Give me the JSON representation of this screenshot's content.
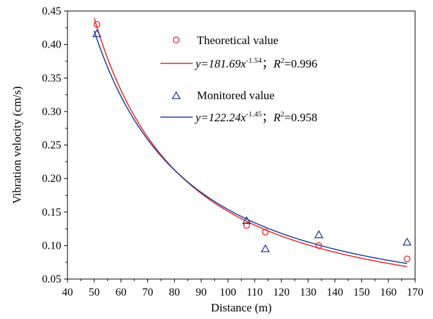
{
  "chart_data": {
    "type": "scatter",
    "xlabel": "Distance (m)",
    "ylabel": "Vibration velocity (cm/s)",
    "xlim": [
      40,
      170
    ],
    "ylim": [
      0.05,
      0.45
    ],
    "x_ticks": [
      40,
      50,
      60,
      70,
      80,
      90,
      100,
      110,
      120,
      130,
      140,
      150,
      160,
      170
    ],
    "y_ticks": [
      0.05,
      0.1,
      0.15,
      0.2,
      0.25,
      0.3,
      0.35,
      0.4,
      0.45
    ],
    "x_tick_labels": [
      "40",
      "50",
      "60",
      "70",
      "80",
      "90",
      "100",
      "110",
      "120",
      "130",
      "140",
      "150",
      "160",
      "170"
    ],
    "y_tick_labels": [
      "0.05",
      "0.10",
      "0.15",
      "0.20",
      "0.25",
      "0.30",
      "0.35",
      "0.40",
      "0.45"
    ],
    "grid": false,
    "legend_position": "top-right",
    "series": [
      {
        "name": "Theoretical value",
        "marker": "circle",
        "color": "#e8262a",
        "points": [
          [
            51,
            0.43
          ],
          [
            107,
            0.13
          ],
          [
            114,
            0.12
          ],
          [
            134,
            0.1
          ],
          [
            167,
            0.08
          ]
        ],
        "fit": {
          "coef": 181.69,
          "exponent": -1.54,
          "equation_prefix": "y=181.69x",
          "equation_exponent": "-1.54",
          "equation_sep": "；",
          "r2_label": "R",
          "r2_sup": "2",
          "r2_value": "=0.996",
          "color": "#e8262a"
        }
      },
      {
        "name": "Monitored value",
        "marker": "triangle",
        "color": "#1f3d99",
        "points": [
          [
            51,
            0.416
          ],
          [
            107,
            0.137
          ],
          [
            114,
            0.095
          ],
          [
            134,
            0.116
          ],
          [
            167,
            0.105
          ]
        ],
        "fit": {
          "coef": 122.24,
          "exponent": -1.45,
          "equation_prefix": "y=122.24x",
          "equation_exponent": "-1.45",
          "equation_sep": "；",
          "r2_label": "R",
          "r2_sup": "2",
          "r2_value": "=0.958",
          "color": "#1f3d99"
        }
      }
    ]
  }
}
